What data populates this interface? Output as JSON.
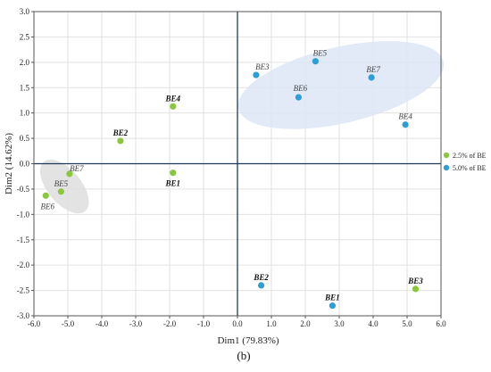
{
  "chart_data": {
    "type": "scatter",
    "xlabel": "Dim1 (79.83%)",
    "ylabel": "Dim2 (14.62%)",
    "xlim": [
      -6.0,
      6.0
    ],
    "ylim": [
      -3.0,
      3.0
    ],
    "x_ticks": [
      -6.0,
      -5.0,
      -4.0,
      -3.0,
      -2.0,
      -1.0,
      0.0,
      1.0,
      2.0,
      3.0,
      4.0,
      5.0,
      6.0
    ],
    "y_ticks": [
      3.0,
      2.5,
      2.0,
      1.5,
      1.0,
      0.5,
      0.0,
      -0.5,
      -1.0,
      -1.5,
      -2.0,
      -2.5,
      -3.0
    ],
    "grid": true,
    "legend_position": "right",
    "panel_label": "(b)",
    "series": [
      {
        "name": "2.5% of BE",
        "color": "#8cc63f",
        "points": [
          {
            "label": "BE4",
            "x": -1.9,
            "y": 1.13,
            "bold": true
          },
          {
            "label": "BE2",
            "x": -3.45,
            "y": 0.45,
            "bold": true
          },
          {
            "label": "BE1",
            "x": -1.9,
            "y": -0.18,
            "bold": true
          },
          {
            "label": "BE7",
            "x": -4.95,
            "y": -0.2,
            "bold": false
          },
          {
            "label": "BE5",
            "x": -5.2,
            "y": -0.55,
            "bold": false
          },
          {
            "label": "BE6",
            "x": -5.65,
            "y": -0.63,
            "bold": false
          },
          {
            "label": "BE3",
            "x": 5.25,
            "y": -2.47,
            "bold": true
          }
        ]
      },
      {
        "name": "5.0% of BE",
        "color": "#2e9fd6",
        "points": [
          {
            "label": "BE5",
            "x": 2.3,
            "y": 2.02,
            "bold": false
          },
          {
            "label": "BE3",
            "x": 0.55,
            "y": 1.75,
            "bold": false
          },
          {
            "label": "BE7",
            "x": 3.95,
            "y": 1.7,
            "bold": false
          },
          {
            "label": "BE6",
            "x": 1.8,
            "y": 1.31,
            "bold": false
          },
          {
            "label": "BE4",
            "x": 4.95,
            "y": 0.77,
            "bold": false
          },
          {
            "label": "BE2",
            "x": 0.7,
            "y": -2.4,
            "bold": true
          },
          {
            "label": "BE1",
            "x": 2.8,
            "y": -2.8,
            "bold": true
          }
        ]
      }
    ],
    "ellipses": [
      {
        "group": "5.0% of BE",
        "cx": 3.05,
        "cy": 1.55,
        "rx": 3.1,
        "ry": 0.75,
        "angle": -13,
        "color": "#dce6f4"
      },
      {
        "group": "2.5% of BE",
        "cx": -5.1,
        "cy": -0.45,
        "rx": 0.95,
        "ry": 0.33,
        "angle": 50,
        "color": "#dedede"
      }
    ]
  }
}
